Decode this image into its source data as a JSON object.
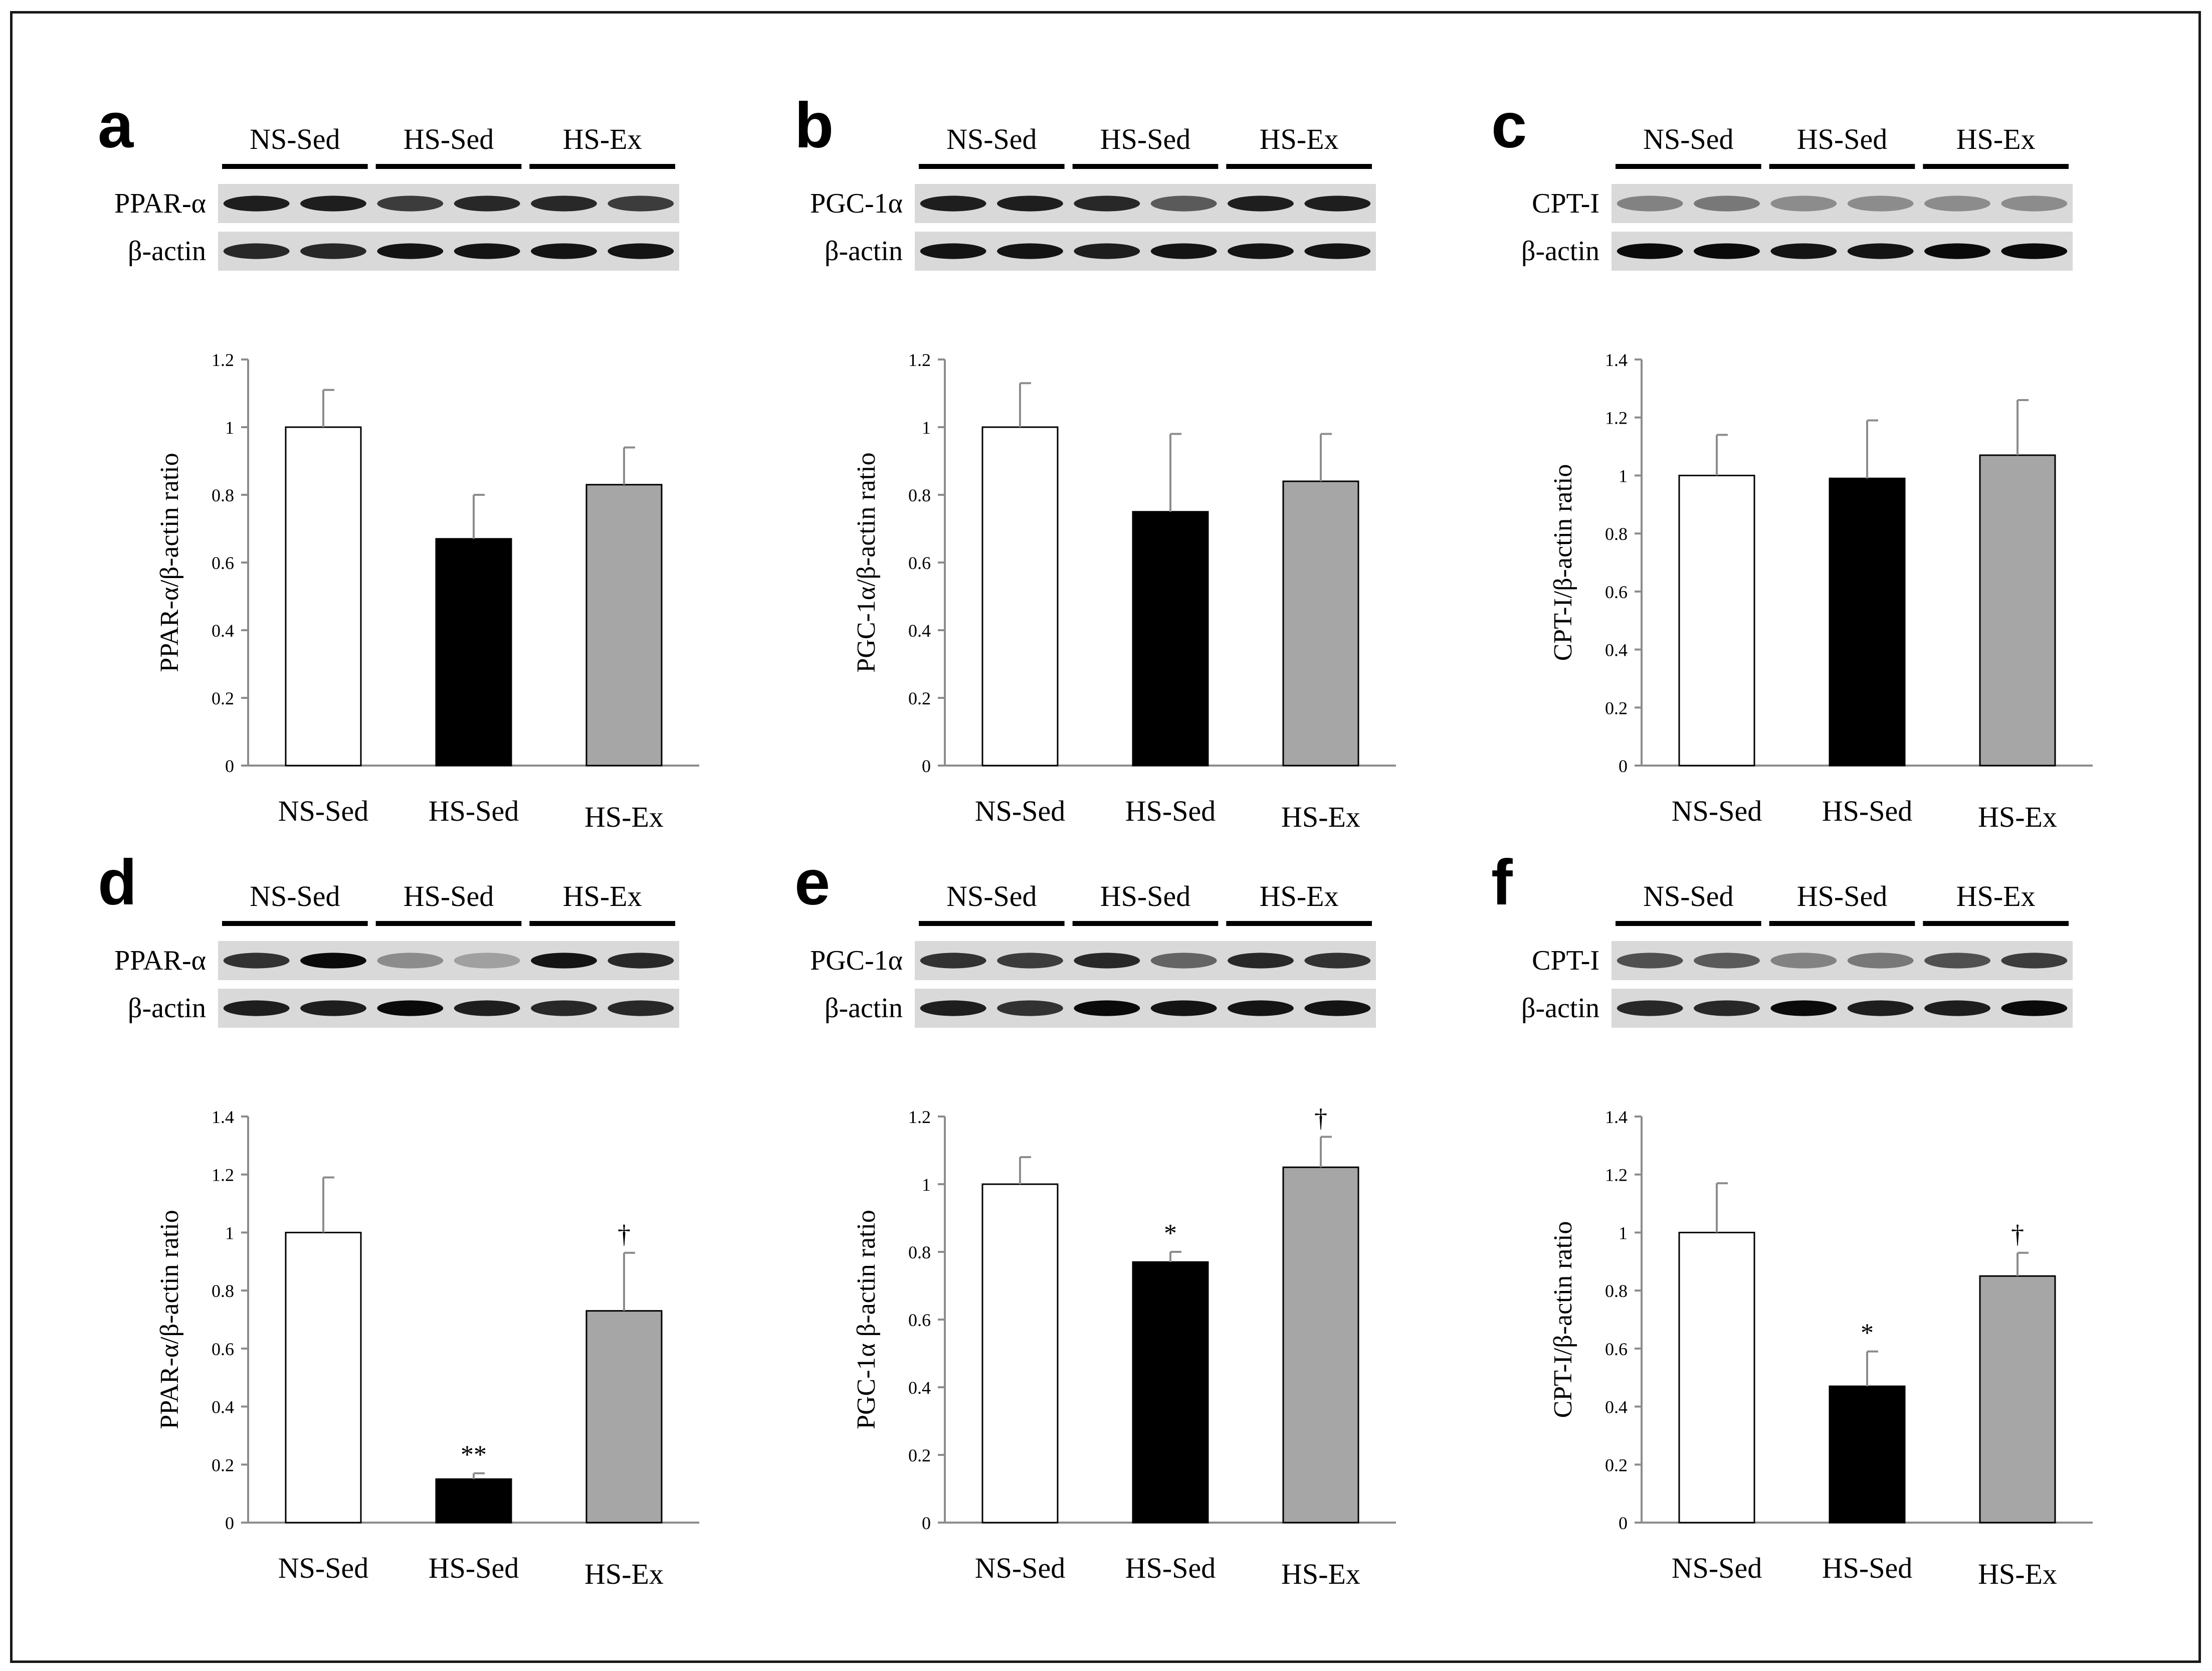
{
  "figure": {
    "colors": {
      "NS-Sed": "#ffffff",
      "HS-Sed": "#000000",
      "HS-Ex": "#a6a6a6",
      "axis": "#8c8c8c",
      "text": "#000000"
    }
  },
  "panels": [
    {
      "letter": "a",
      "blot": {
        "groups": [
          "NS-Sed",
          "HS-Sed",
          "HS-Ex"
        ],
        "rows": [
          {
            "label": "PPAR-α",
            "intensity": [
              0.85,
              0.85,
              0.7,
              0.8,
              0.8,
              0.7
            ]
          },
          {
            "label": "β-actin",
            "intensity": [
              0.8,
              0.8,
              0.9,
              0.9,
              0.9,
              0.9
            ]
          }
        ]
      }
    },
    {
      "letter": "b",
      "blot": {
        "groups": [
          "NS-Sed",
          "HS-Sed",
          "HS-Ex"
        ],
        "rows": [
          {
            "label": "PGC-1α",
            "intensity": [
              0.85,
              0.85,
              0.8,
              0.55,
              0.85,
              0.85
            ]
          },
          {
            "label": "β-actin",
            "intensity": [
              0.9,
              0.9,
              0.85,
              0.9,
              0.9,
              0.9
            ]
          }
        ]
      }
    },
    {
      "letter": "c",
      "blot": {
        "groups": [
          "NS-Sed",
          "HS-Sed",
          "HS-Ex"
        ],
        "rows": [
          {
            "label": "CPT-I",
            "intensity": [
              0.35,
              0.4,
              0.3,
              0.3,
              0.3,
              0.3
            ]
          },
          {
            "label": "β-actin",
            "intensity": [
              0.95,
              0.95,
              0.9,
              0.9,
              0.95,
              0.95
            ]
          }
        ]
      }
    },
    {
      "letter": "d",
      "blot": {
        "groups": [
          "NS-Sed",
          "HS-Sed",
          "HS-Ex"
        ],
        "rows": [
          {
            "label": "PPAR-α",
            "intensity": [
              0.75,
              0.95,
              0.3,
              0.2,
              0.9,
              0.8
            ]
          },
          {
            "label": "β-actin",
            "intensity": [
              0.85,
              0.85,
              0.95,
              0.85,
              0.8,
              0.8
            ]
          }
        ]
      }
    },
    {
      "letter": "e",
      "blot": {
        "groups": [
          "NS-Sed",
          "HS-Sed",
          "HS-Ex"
        ],
        "rows": [
          {
            "label": "PGC-1α",
            "intensity": [
              0.75,
              0.7,
              0.8,
              0.5,
              0.8,
              0.75
            ]
          },
          {
            "label": "β-actin",
            "intensity": [
              0.85,
              0.75,
              0.95,
              0.9,
              0.9,
              0.9
            ]
          }
        ]
      }
    },
    {
      "letter": "f",
      "blot": {
        "groups": [
          "NS-Sed",
          "HS-Sed",
          "HS-Ex"
        ],
        "rows": [
          {
            "label": "CPT-I",
            "intensity": [
              0.6,
              0.55,
              0.35,
              0.4,
              0.6,
              0.7
            ]
          },
          {
            "label": "β-actin",
            "intensity": [
              0.8,
              0.8,
              0.95,
              0.85,
              0.85,
              0.95
            ]
          }
        ]
      }
    }
  ],
  "chart_data": [
    {
      "panel": "a",
      "type": "bar",
      "categories": [
        "NS-Sed",
        "HS-Sed",
        "HS-Ex"
      ],
      "values": [
        1.0,
        0.67,
        0.83
      ],
      "errors": [
        0.11,
        0.13,
        0.11
      ],
      "significance": [
        "",
        "",
        ""
      ],
      "ylabel": "PPAR-α/β-actin ratio",
      "ylim": [
        0,
        1.2
      ],
      "yticks": [
        "0",
        "0.2",
        "0.4",
        "0.6",
        "0.8",
        "1",
        "1.2"
      ]
    },
    {
      "panel": "b",
      "type": "bar",
      "categories": [
        "NS-Sed",
        "HS-Sed",
        "HS-Ex"
      ],
      "values": [
        1.0,
        0.75,
        0.84
      ],
      "errors": [
        0.13,
        0.23,
        0.14
      ],
      "significance": [
        "",
        "",
        ""
      ],
      "ylabel": "PGC-1α/β-actin ratio",
      "ylim": [
        0,
        1.2
      ],
      "yticks": [
        "0",
        "0.2",
        "0.4",
        "0.6",
        "0.8",
        "1",
        "1.2"
      ]
    },
    {
      "panel": "c",
      "type": "bar",
      "categories": [
        "NS-Sed",
        "HS-Sed",
        "HS-Ex"
      ],
      "values": [
        1.0,
        0.99,
        1.07
      ],
      "errors": [
        0.14,
        0.2,
        0.19
      ],
      "significance": [
        "",
        "",
        ""
      ],
      "ylabel": "CPT-I/β-actin ratio",
      "ylim": [
        0,
        1.4
      ],
      "yticks": [
        "0",
        "0.2",
        "0.4",
        "0.6",
        "0.8",
        "1",
        "1.2",
        "1.4"
      ]
    },
    {
      "panel": "d",
      "type": "bar",
      "categories": [
        "NS-Sed",
        "HS-Sed",
        "HS-Ex"
      ],
      "values": [
        1.0,
        0.15,
        0.73
      ],
      "errors": [
        0.19,
        0.02,
        0.2
      ],
      "significance": [
        "",
        "**",
        "†"
      ],
      "ylabel": "PPAR-α/β-actin ratio",
      "ylim": [
        0,
        1.4
      ],
      "yticks": [
        "0",
        "0.2",
        "0.4",
        "0.6",
        "0.8",
        "1",
        "1.2",
        "1.4"
      ]
    },
    {
      "panel": "e",
      "type": "bar",
      "categories": [
        "NS-Sed",
        "HS-Sed",
        "HS-Ex"
      ],
      "values": [
        1.0,
        0.77,
        1.05
      ],
      "errors": [
        0.08,
        0.03,
        0.09
      ],
      "significance": [
        "",
        "*",
        "†"
      ],
      "ylabel": "PGC-1α β-actin ratio",
      "ylim": [
        0,
        1.2
      ],
      "yticks": [
        "0",
        "0.2",
        "0.4",
        "0.6",
        "0.8",
        "1",
        "1.2"
      ]
    },
    {
      "panel": "f",
      "type": "bar",
      "categories": [
        "NS-Sed",
        "HS-Sed",
        "HS-Ex"
      ],
      "values": [
        1.0,
        0.47,
        0.85
      ],
      "errors": [
        0.17,
        0.12,
        0.08
      ],
      "significance": [
        "",
        "*",
        "†"
      ],
      "ylabel": "CPT-I/β-actin ratio",
      "ylim": [
        0,
        1.4
      ],
      "yticks": [
        "0",
        "0.2",
        "0.4",
        "0.6",
        "0.8",
        "1",
        "1.2",
        "1.4"
      ]
    }
  ]
}
